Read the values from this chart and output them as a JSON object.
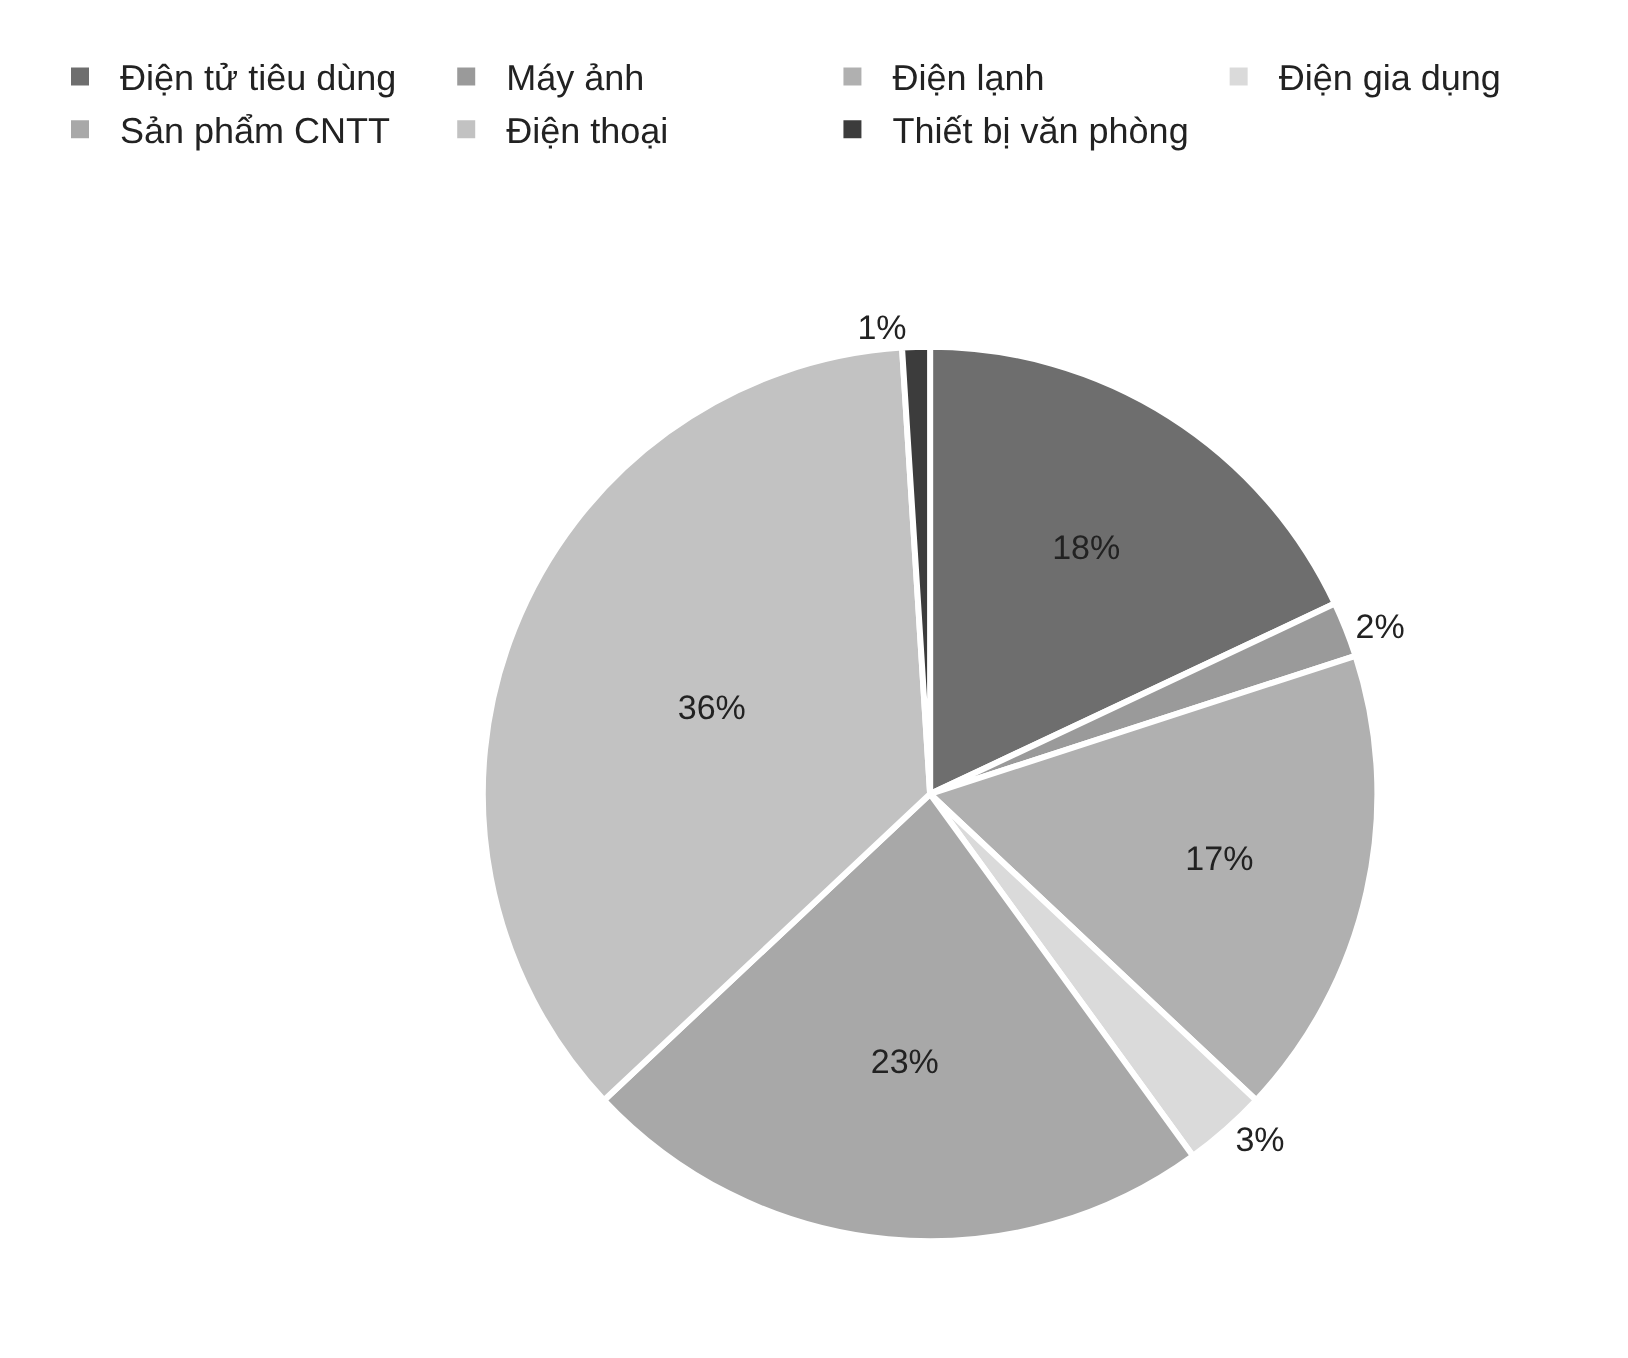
{
  "chart_data": {
    "type": "pie",
    "categories": [
      "Điện tử tiêu dùng",
      "Máy ảnh",
      "Điện lạnh",
      "Điện gia dụng",
      "Sản phẩm CNTT",
      "Điện thoại",
      "Thiết bị văn phòng"
    ],
    "values": [
      18,
      2,
      17,
      3,
      23,
      36,
      1
    ],
    "value_labels": [
      "18%",
      "2%",
      "17%",
      "3%",
      "23%",
      "36%",
      "1%"
    ],
    "colors": [
      "#6e6e6e",
      "#9a9a9a",
      "#b0b0b0",
      "#dadada",
      "#a8a8a8",
      "#c2c2c2",
      "#3c3c3c"
    ],
    "legend": "top"
  }
}
